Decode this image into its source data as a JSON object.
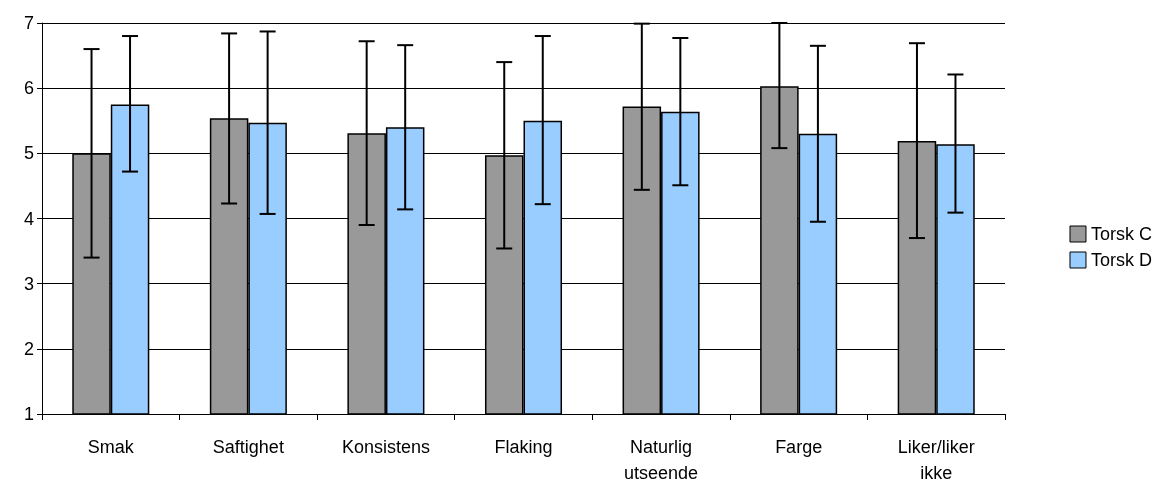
{
  "chart_data": {
    "type": "bar",
    "categories": [
      "Smak",
      "Saftighet",
      "Konsistens",
      "Flaking",
      "Naturlig\nutseende",
      "Farge",
      "Liker/liker\nikke"
    ],
    "series": [
      {
        "name": "Torsk C",
        "color": "#999999",
        "values": [
          5.0,
          5.54,
          5.31,
          4.97,
          5.72,
          6.03,
          5.19
        ],
        "errors": [
          [
            3.4,
            6.6
          ],
          [
            4.23,
            6.84
          ],
          [
            3.9,
            6.72
          ],
          [
            3.54,
            6.4
          ],
          [
            4.44,
            6.99
          ],
          [
            5.08,
            7.0
          ],
          [
            3.7,
            6.69
          ]
        ]
      },
      {
        "name": "Torsk D",
        "color": "#99ccff",
        "values": [
          5.75,
          5.47,
          5.4,
          5.5,
          5.64,
          5.3,
          5.14
        ],
        "errors": [
          [
            4.72,
            6.8
          ],
          [
            4.07,
            6.87
          ],
          [
            4.14,
            6.66
          ],
          [
            4.22,
            6.8
          ],
          [
            4.51,
            6.77
          ],
          [
            3.95,
            6.65
          ],
          [
            4.09,
            6.21
          ]
        ]
      }
    ],
    "ylim": [
      1,
      7
    ],
    "yticks": [
      1,
      2,
      3,
      4,
      5,
      6,
      7
    ],
    "grid": "y",
    "legend": "right"
  }
}
